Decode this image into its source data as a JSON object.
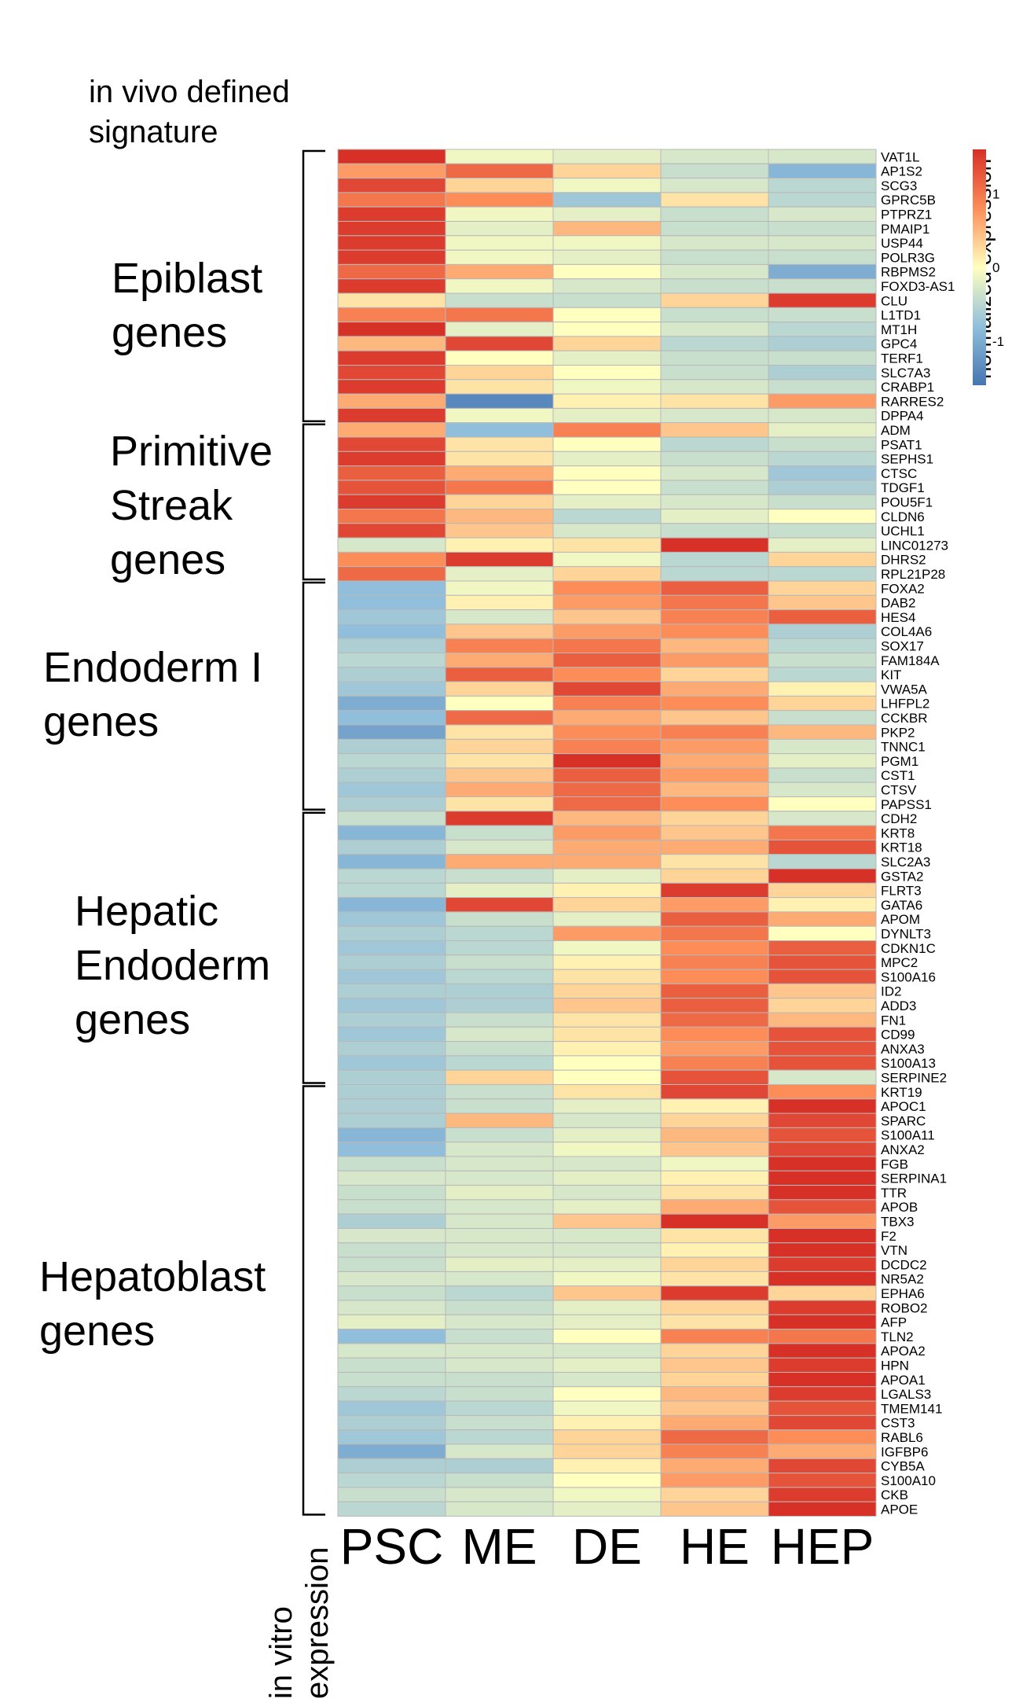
{
  "chart_data": {
    "type": "heatmap",
    "title": "in vivo defined signature",
    "xlabel": "in vitro expression",
    "columns": [
      "PSC",
      "ME",
      "DE",
      "HE",
      "HEP"
    ],
    "legend": {
      "title": "normalized expression",
      "ticks": [
        1,
        0,
        -1
      ],
      "range": [
        -1.6,
        1.6
      ]
    },
    "groups": [
      {
        "name": "Epiblast genes",
        "label": "Epiblast\ngenes",
        "start": 0,
        "end": 18
      },
      {
        "name": "Primitive Streak genes",
        "label": "Primitive\nStreak\ngenes",
        "start": 19,
        "end": 29
      },
      {
        "name": "Endoderm I genes",
        "label": "Endoderm I\ngenes",
        "start": 30,
        "end": 45
      },
      {
        "name": "Hepatic Endoderm genes",
        "label": "Hepatic\nEndoderm\ngenes",
        "start": 46,
        "end": 64
      },
      {
        "name": "Hepatoblast genes",
        "label": "Hepatoblast\ngenes",
        "start": 65,
        "end": 94
      }
    ],
    "rows": [
      {
        "gene": "VAT1L",
        "values": [
          1.6,
          -0.1,
          -0.2,
          -0.3,
          -0.3
        ]
      },
      {
        "gene": "AP1S2",
        "values": [
          0.7,
          1.1,
          0.3,
          -0.4,
          -0.9
        ]
      },
      {
        "gene": "SCG3",
        "values": [
          1.4,
          0.3,
          -0.1,
          -0.3,
          -0.5
        ]
      },
      {
        "gene": "GPRC5B",
        "values": [
          1.0,
          0.8,
          -0.7,
          0.2,
          -0.5
        ]
      },
      {
        "gene": "PTPRZ1",
        "values": [
          1.5,
          -0.1,
          -0.2,
          -0.4,
          -0.3
        ]
      },
      {
        "gene": "PMAIP1",
        "values": [
          1.5,
          -0.2,
          0.5,
          -0.4,
          -0.4
        ]
      },
      {
        "gene": "USP44",
        "values": [
          1.5,
          -0.1,
          -0.1,
          -0.3,
          -0.3
        ]
      },
      {
        "gene": "POLR3G",
        "values": [
          1.5,
          -0.1,
          -0.2,
          -0.4,
          -0.4
        ]
      },
      {
        "gene": "RBPMS2",
        "values": [
          1.1,
          0.6,
          0.0,
          -0.3,
          -1.0
        ]
      },
      {
        "gene": "FOXD3-AS1",
        "values": [
          1.5,
          -0.1,
          -0.3,
          -0.4,
          -0.4
        ]
      },
      {
        "gene": "CLU",
        "values": [
          0.2,
          -0.4,
          -0.4,
          0.3,
          1.5
        ]
      },
      {
        "gene": "L1TD1",
        "values": [
          0.9,
          1.0,
          0.0,
          -0.4,
          -0.4
        ]
      },
      {
        "gene": "MT1H",
        "values": [
          1.6,
          -0.2,
          0.0,
          -0.3,
          -0.5
        ]
      },
      {
        "gene": "GPC4",
        "values": [
          0.5,
          1.4,
          0.3,
          -0.5,
          -0.6
        ]
      },
      {
        "gene": "TERF1",
        "values": [
          1.5,
          0.0,
          -0.2,
          -0.4,
          -0.4
        ]
      },
      {
        "gene": "SLC7A3",
        "values": [
          1.4,
          0.3,
          0.0,
          -0.4,
          -0.6
        ]
      },
      {
        "gene": "CRABP1",
        "values": [
          1.5,
          0.2,
          -0.1,
          -0.3,
          -0.4
        ]
      },
      {
        "gene": "RARRES2",
        "values": [
          0.6,
          -1.4,
          0.1,
          0.2,
          0.7
        ]
      },
      {
        "gene": "DPPA4",
        "values": [
          1.5,
          -0.1,
          -0.2,
          -0.3,
          -0.3
        ]
      },
      {
        "gene": "ADM",
        "values": [
          0.6,
          -0.8,
          0.9,
          0.4,
          -0.2
        ]
      },
      {
        "gene": "PSAT1",
        "values": [
          1.4,
          0.2,
          0.0,
          -0.5,
          -0.4
        ]
      },
      {
        "gene": "SEPHS1",
        "values": [
          1.5,
          0.2,
          -0.2,
          -0.4,
          -0.5
        ]
      },
      {
        "gene": "CTSC",
        "values": [
          1.2,
          0.6,
          0.0,
          -0.3,
          -0.7
        ]
      },
      {
        "gene": "TDGF1",
        "values": [
          1.3,
          1.0,
          0.0,
          -0.4,
          -0.6
        ]
      },
      {
        "gene": "POU5F1",
        "values": [
          1.5,
          0.3,
          -0.2,
          -0.3,
          -0.4
        ]
      },
      {
        "gene": "CLDN6",
        "values": [
          1.0,
          0.5,
          -0.5,
          -0.2,
          0.0
        ]
      },
      {
        "gene": "UCHL1",
        "values": [
          1.4,
          0.4,
          -0.3,
          -0.4,
          -0.4
        ]
      },
      {
        "gene": "LINC01273",
        "values": [
          -0.3,
          0.1,
          0.2,
          1.6,
          -0.2
        ]
      },
      {
        "gene": "DHRS2",
        "values": [
          0.8,
          1.5,
          -0.1,
          -0.5,
          0.3
        ]
      },
      {
        "gene": "RPL21P28",
        "values": [
          1.1,
          -0.2,
          0.3,
          -0.5,
          -0.5
        ]
      },
      {
        "gene": "FOXA2",
        "values": [
          -0.8,
          -0.1,
          0.8,
          1.2,
          0.3
        ]
      },
      {
        "gene": "DAB2",
        "values": [
          -0.8,
          0.1,
          0.7,
          1.0,
          0.4
        ]
      },
      {
        "gene": "HES4",
        "values": [
          -0.7,
          -0.3,
          0.4,
          0.9,
          1.2
        ]
      },
      {
        "gene": "COL4A6",
        "values": [
          -0.8,
          0.4,
          0.7,
          0.8,
          -0.6
        ]
      },
      {
        "gene": "SOX17",
        "values": [
          -0.6,
          0.9,
          1.0,
          0.5,
          -0.5
        ]
      },
      {
        "gene": "FAM184A",
        "values": [
          -0.5,
          0.6,
          1.2,
          0.7,
          -0.4
        ]
      },
      {
        "gene": "KIT",
        "values": [
          -0.6,
          1.2,
          0.8,
          0.3,
          -0.5
        ]
      },
      {
        "gene": "VWA5A",
        "values": [
          -0.7,
          0.3,
          1.4,
          0.6,
          0.1
        ]
      },
      {
        "gene": "LHFPL2",
        "values": [
          -1.0,
          0.0,
          0.9,
          0.8,
          0.3
        ]
      },
      {
        "gene": "CCKBR",
        "values": [
          -0.8,
          1.1,
          0.6,
          0.4,
          -0.4
        ]
      },
      {
        "gene": "PKP2",
        "values": [
          -1.1,
          0.2,
          0.8,
          0.9,
          0.5
        ]
      },
      {
        "gene": "TNNC1",
        "values": [
          -0.6,
          0.3,
          0.9,
          0.7,
          -0.3
        ]
      },
      {
        "gene": "PGM1",
        "values": [
          -0.5,
          0.2,
          1.6,
          0.6,
          -0.2
        ]
      },
      {
        "gene": "CST1",
        "values": [
          -0.6,
          0.4,
          1.2,
          0.7,
          -0.4
        ]
      },
      {
        "gene": "CTSV",
        "values": [
          -0.7,
          0.6,
          1.1,
          0.5,
          -0.3
        ]
      },
      {
        "gene": "PAPSS1",
        "values": [
          -0.6,
          0.2,
          1.1,
          0.8,
          0.0
        ]
      },
      {
        "gene": "CDH2",
        "values": [
          -0.4,
          1.5,
          0.5,
          0.3,
          -0.3
        ]
      },
      {
        "gene": "KRT8",
        "values": [
          -0.9,
          -0.4,
          0.7,
          0.4,
          1.0
        ]
      },
      {
        "gene": "KRT18",
        "values": [
          -0.6,
          -0.3,
          0.6,
          0.6,
          1.3
        ]
      },
      {
        "gene": "SLC2A3",
        "values": [
          -0.9,
          0.6,
          0.6,
          0.2,
          -0.5
        ]
      },
      {
        "gene": "GSTA2",
        "values": [
          -0.5,
          -0.4,
          -0.2,
          0.3,
          1.6
        ]
      },
      {
        "gene": "FLRT3",
        "values": [
          -0.5,
          -0.2,
          0.1,
          1.5,
          0.3
        ]
      },
      {
        "gene": "GATA6",
        "values": [
          -0.9,
          1.4,
          0.3,
          0.7,
          0.1
        ]
      },
      {
        "gene": "APOM",
        "values": [
          -0.7,
          -0.4,
          -0.2,
          1.2,
          0.6
        ]
      },
      {
        "gene": "DYNLT3",
        "values": [
          -0.6,
          -0.5,
          0.7,
          1.0,
          0.0
        ]
      },
      {
        "gene": "CDKN1C",
        "values": [
          -0.7,
          -0.5,
          -0.1,
          0.8,
          1.2
        ]
      },
      {
        "gene": "MPC2",
        "values": [
          -0.6,
          -0.4,
          0.1,
          0.9,
          1.3
        ]
      },
      {
        "gene": "S100A16",
        "values": [
          -0.7,
          -0.5,
          0.2,
          0.8,
          1.3
        ]
      },
      {
        "gene": "ID2",
        "values": [
          -0.6,
          -0.6,
          0.3,
          1.2,
          0.4
        ]
      },
      {
        "gene": "ADD3",
        "values": [
          -0.7,
          -0.6,
          0.4,
          1.2,
          0.3
        ]
      },
      {
        "gene": "FN1",
        "values": [
          -0.6,
          -0.4,
          0.2,
          1.1,
          0.5
        ]
      },
      {
        "gene": "CD99",
        "values": [
          -0.7,
          -0.3,
          0.2,
          0.8,
          1.3
        ]
      },
      {
        "gene": "ANXA3",
        "values": [
          -0.6,
          -0.4,
          0.1,
          0.7,
          1.3
        ]
      },
      {
        "gene": "S100A13",
        "values": [
          -0.7,
          -0.5,
          0.0,
          0.9,
          1.3
        ]
      },
      {
        "gene": "SERPINE2",
        "values": [
          -0.6,
          0.3,
          0.0,
          1.3,
          -0.3
        ]
      },
      {
        "gene": "KRT19",
        "values": [
          -0.6,
          -0.4,
          0.2,
          1.4,
          0.8
        ]
      },
      {
        "gene": "APOC1",
        "values": [
          -0.6,
          -0.4,
          -0.2,
          0.1,
          1.6
        ]
      },
      {
        "gene": "SPARC",
        "values": [
          -0.6,
          0.5,
          -0.3,
          0.3,
          1.4
        ]
      },
      {
        "gene": "S100A11",
        "values": [
          -0.9,
          -0.4,
          -0.2,
          0.5,
          1.3
        ]
      },
      {
        "gene": "ANXA2",
        "values": [
          -0.8,
          -0.3,
          -0.1,
          0.4,
          1.4
        ]
      },
      {
        "gene": "FGB",
        "values": [
          -0.4,
          -0.3,
          -0.3,
          -0.1,
          1.6
        ]
      },
      {
        "gene": "SERPINA1",
        "values": [
          -0.3,
          -0.3,
          -0.2,
          0.1,
          1.6
        ]
      },
      {
        "gene": "TTR",
        "values": [
          -0.4,
          -0.2,
          -0.3,
          0.2,
          1.6
        ]
      },
      {
        "gene": "APOB",
        "values": [
          -0.4,
          -0.3,
          -0.2,
          0.6,
          1.3
        ]
      },
      {
        "gene": "TBX3",
        "values": [
          -0.6,
          -0.3,
          0.4,
          1.6,
          0.7
        ]
      },
      {
        "gene": "F2",
        "values": [
          -0.3,
          -0.3,
          -0.3,
          0.2,
          1.6
        ]
      },
      {
        "gene": "VTN",
        "values": [
          -0.4,
          -0.3,
          -0.3,
          0.1,
          1.6
        ]
      },
      {
        "gene": "DCDC2",
        "values": [
          -0.4,
          -0.2,
          -0.2,
          0.3,
          1.5
        ]
      },
      {
        "gene": "NR5A2",
        "values": [
          -0.3,
          -0.3,
          -0.1,
          0.2,
          1.6
        ]
      },
      {
        "gene": "EPHA6",
        "values": [
          -0.4,
          -0.5,
          0.4,
          1.5,
          0.3
        ]
      },
      {
        "gene": "ROBO2",
        "values": [
          -0.3,
          -0.4,
          -0.2,
          0.3,
          1.5
        ]
      },
      {
        "gene": "AFP",
        "values": [
          -0.2,
          -0.3,
          -0.2,
          0.2,
          1.6
        ]
      },
      {
        "gene": "TLN2",
        "values": [
          -0.8,
          -0.4,
          0.0,
          0.9,
          1.0
        ]
      },
      {
        "gene": "APOA2",
        "values": [
          -0.3,
          -0.3,
          -0.3,
          0.3,
          1.6
        ]
      },
      {
        "gene": "HPN",
        "values": [
          -0.4,
          -0.3,
          -0.2,
          0.4,
          1.5
        ]
      },
      {
        "gene": "APOA1",
        "values": [
          -0.4,
          -0.4,
          -0.3,
          0.3,
          1.6
        ]
      },
      {
        "gene": "LGALS3",
        "values": [
          -0.5,
          -0.4,
          0.0,
          0.5,
          1.5
        ]
      },
      {
        "gene": "TMEM141",
        "values": [
          -0.7,
          -0.5,
          -0.1,
          0.4,
          1.3
        ]
      },
      {
        "gene": "CST3",
        "values": [
          -0.6,
          -0.4,
          0.1,
          0.6,
          1.4
        ]
      },
      {
        "gene": "RABL6",
        "values": [
          -0.7,
          -0.5,
          0.3,
          1.1,
          0.8
        ]
      },
      {
        "gene": "IGFBP6",
        "values": [
          -1.0,
          -0.3,
          0.3,
          0.9,
          0.6
        ]
      },
      {
        "gene": "CYB5A",
        "values": [
          -0.6,
          -0.6,
          0.1,
          0.6,
          1.4
        ]
      },
      {
        "gene": "S100A10",
        "values": [
          -0.5,
          -0.4,
          0.0,
          0.7,
          1.3
        ]
      },
      {
        "gene": "CKB",
        "values": [
          -0.4,
          -0.3,
          -0.1,
          0.3,
          1.5
        ]
      },
      {
        "gene": "APOE",
        "values": [
          -0.5,
          -0.3,
          -0.2,
          0.4,
          1.6
        ]
      }
    ]
  }
}
